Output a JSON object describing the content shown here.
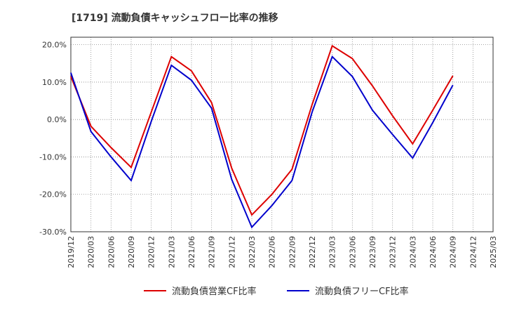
{
  "chart_data": {
    "type": "line",
    "title": "[1719]  流動負債キャッシュフロー比率の推移",
    "xlabel": "",
    "ylabel": "",
    "categories": [
      "2019/12",
      "2020/03",
      "2020/06",
      "2020/09",
      "2020/12",
      "2021/03",
      "2021/06",
      "2021/09",
      "2021/12",
      "2022/03",
      "2022/06",
      "2022/09",
      "2022/12",
      "2023/03",
      "2023/06",
      "2023/09",
      "2023/12",
      "2024/03",
      "2024/06",
      "2024/09",
      "2024/12",
      "2025/03"
    ],
    "ylim": [
      -30,
      22
    ],
    "yticks": [
      20,
      10,
      0,
      -10,
      -20,
      -30
    ],
    "ytick_labels": [
      "20.0%",
      "10.0%",
      "0.0%",
      "-10.0%",
      "-20.0%",
      "-30.0%"
    ],
    "grid": true,
    "legend_position": "bottom",
    "series": [
      {
        "name": "流動負債営業CF比率",
        "color": "#dd0000",
        "values": [
          11.5,
          -1.8,
          -7.5,
          -12.8,
          2.0,
          16.8,
          13.0,
          4.5,
          -13.0,
          -25.5,
          -20.0,
          -13.3,
          4.0,
          19.7,
          16.3,
          9.0,
          1.0,
          -6.5,
          2.5,
          11.7,
          null,
          null
        ]
      },
      {
        "name": "流動負債フリーCF比率",
        "color": "#0000cc",
        "values": [
          12.5,
          -3.2,
          -10.0,
          -16.3,
          -0.5,
          14.5,
          10.5,
          3.0,
          -16.0,
          -28.8,
          -23.0,
          -16.3,
          2.0,
          16.8,
          11.5,
          2.5,
          -4.0,
          -10.3,
          -0.8,
          9.2,
          null,
          null
        ]
      }
    ]
  }
}
